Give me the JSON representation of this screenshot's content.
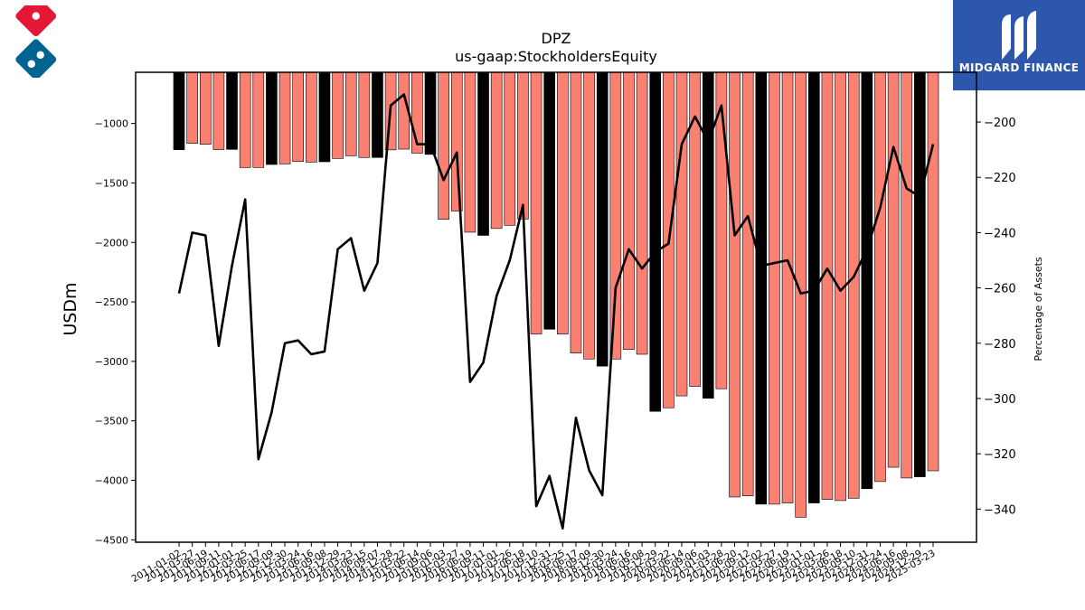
{
  "logos": {
    "left_icon": "dominos-logo-icon",
    "right_brand": "MIDGARD FINANCE",
    "right_icon": "midgard-logo-icon"
  },
  "colors": {
    "bar_highlight": "#000000",
    "bar_default": "#fa8072",
    "line": "#000000",
    "brand_blue": "#2c57ad",
    "dominos_red": "#e31837",
    "dominos_blue": "#006491"
  },
  "chart_data": {
    "type": "bar",
    "title": "DPZ",
    "subtitle": "us-gaap:StockholdersEquity",
    "ylabel": "USDm",
    "y2label": "Percentage of Assets",
    "ylim": [
      -4520,
      -570
    ],
    "y2lim": [
      -352,
      -182
    ],
    "yticks": [
      -1000,
      -1500,
      -2000,
      -2500,
      -3000,
      -3500,
      -4000,
      -4500
    ],
    "y2ticks": [
      -200,
      -220,
      -240,
      -260,
      -280,
      -300,
      -320,
      -340
    ],
    "grid": false,
    "categories": [
      "2011-01-02",
      "2011-03-27",
      "2011-06-19",
      "2011-09-11",
      "2012-01-01",
      "2012-03-25",
      "2012-06-17",
      "2012-09-09",
      "2012-12-30",
      "2013-03-24",
      "2013-06-16",
      "2013-09-08",
      "2013-12-29",
      "2014-03-23",
      "2014-06-15",
      "2014-09-07",
      "2014-12-28",
      "2015-03-22",
      "2015-06-14",
      "2015-09-06",
      "2016-01-03",
      "2016-03-27",
      "2016-06-19",
      "2016-09-11",
      "2017-01-01",
      "2017-03-26",
      "2017-06-18",
      "2017-09-10",
      "2017-12-31",
      "2018-03-25",
      "2018-06-17",
      "2018-09-09",
      "2018-12-30",
      "2019-03-24",
      "2019-06-16",
      "2019-09-08",
      "2019-12-29",
      "2020-03-22",
      "2020-06-14",
      "2020-09-06",
      "2021-01-03",
      "2021-03-28",
      "2021-06-20",
      "2021-09-12",
      "2022-01-02",
      "2022-03-27",
      "2022-06-19",
      "2022-09-11",
      "2023-01-01",
      "2023-03-26",
      "2023-06-18",
      "2023-09-10",
      "2023-12-31",
      "2024-03-24",
      "2024-06-16",
      "2024-09-08",
      "2024-12-29",
      "2025-03-23"
    ],
    "series": [
      {
        "values": [
          -1221,
          -1167,
          -1175,
          -1220,
          -1218,
          -1370,
          -1370,
          -1345,
          -1340,
          -1320,
          -1325,
          -1322,
          -1294,
          -1272,
          -1286,
          -1286,
          -1222,
          -1216,
          -1250,
          -1260,
          -1806,
          -1736,
          -1914,
          -1941,
          -1883,
          -1856,
          -1804,
          -2770,
          -2730,
          -2770,
          -2930,
          -2980,
          -3040,
          -2980,
          -2900,
          -2940,
          -3420,
          -3390,
          -3290,
          -3210,
          -3310,
          -3230,
          -4140,
          -4130,
          -4200,
          -4200,
          -4190,
          -4310,
          -4190,
          -4160,
          -4170,
          -4150,
          -4070,
          -4010,
          -3890,
          -3980,
          -3970,
          -3920
        ],
        "highlight": [
          true,
          false,
          false,
          false,
          true,
          false,
          false,
          true,
          false,
          false,
          false,
          true,
          false,
          false,
          false,
          true,
          false,
          false,
          false,
          true,
          false,
          false,
          false,
          true,
          false,
          false,
          false,
          false,
          true,
          false,
          false,
          false,
          true,
          false,
          false,
          false,
          true,
          false,
          false,
          false,
          true,
          false,
          false,
          false,
          true,
          false,
          false,
          false,
          true,
          false,
          false,
          false,
          true,
          false,
          false,
          false,
          true,
          false
        ]
      },
      {
        "axis": "right",
        "values": [
          -262,
          -240,
          -241,
          -281,
          -252,
          -228,
          -322,
          -305,
          -280,
          -279,
          -284,
          -283,
          -246,
          -242,
          -261,
          -251,
          -194,
          -190,
          -208,
          -208,
          -221,
          -211,
          -294,
          -287,
          -263,
          -250,
          -230,
          -339,
          -328,
          -347,
          -307,
          -326,
          -335,
          -260,
          -246,
          -253,
          -247,
          -244,
          -208,
          -198,
          -207,
          -194,
          -241,
          -234,
          -252,
          -251,
          -250,
          -262,
          -261,
          -253,
          -261,
          -256,
          -246,
          -231,
          -209,
          -224,
          -227,
          -208
        ]
      }
    ]
  }
}
